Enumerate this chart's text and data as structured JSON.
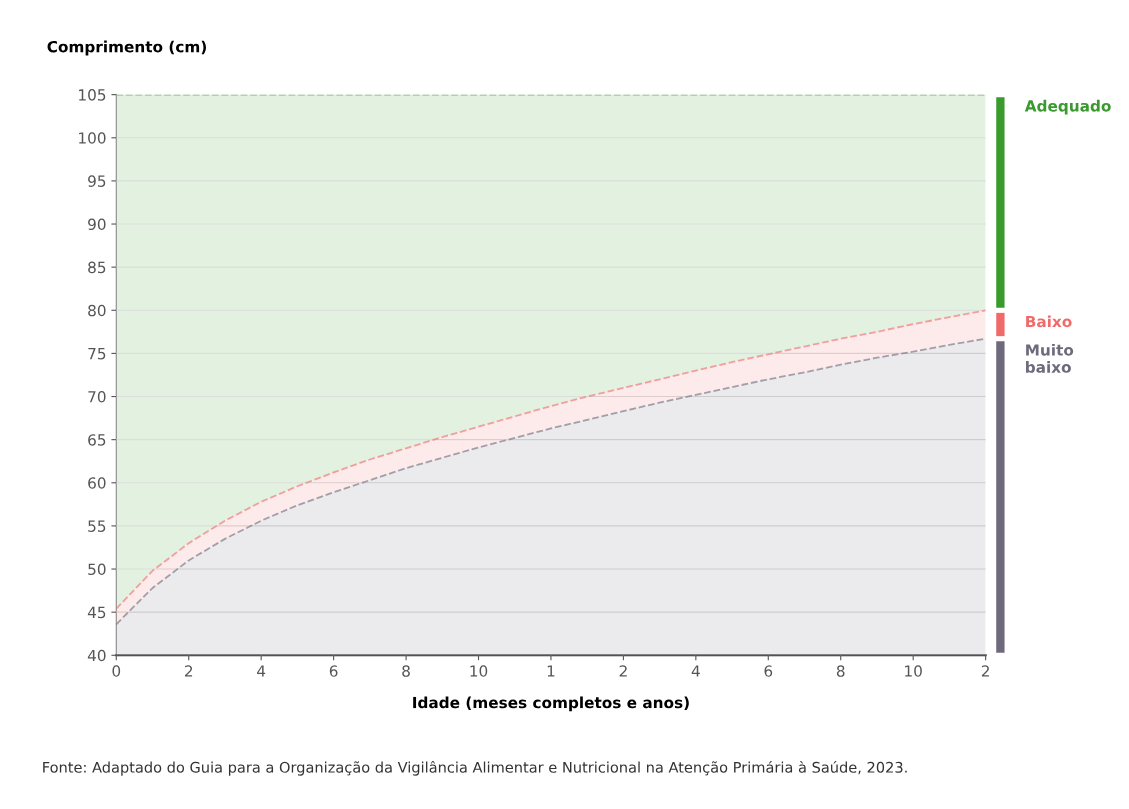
{
  "chart_data": {
    "type": "area",
    "ylabel": "Comprimento (cm)",
    "xlabel": "Idade (meses completos e anos)",
    "categories": [
      "0",
      null,
      "2",
      null,
      "4",
      null,
      "6",
      null,
      "8",
      null,
      "10",
      null,
      "1",
      null,
      "2",
      null,
      "4",
      null,
      "6",
      null,
      "8",
      null,
      "10",
      null,
      "2"
    ],
    "series": [
      {
        "name": "Adequado",
        "color": "#3a9a2e",
        "values": [
          105,
          105,
          105,
          105,
          105,
          105,
          105,
          105,
          105,
          105,
          105,
          105,
          105,
          105,
          105,
          105,
          105,
          105,
          105,
          105,
          105,
          105,
          105,
          105,
          105
        ]
      },
      {
        "name": "Baixo",
        "color": "#f06a6a",
        "values": [
          45.4,
          49.8,
          53.0,
          55.6,
          57.8,
          59.6,
          61.2,
          62.7,
          64.0,
          65.3,
          66.5,
          67.7,
          68.9,
          70.0,
          71.0,
          72.0,
          73.0,
          74.0,
          74.9,
          75.8,
          76.7,
          77.5,
          78.4,
          79.2,
          80.0
        ]
      },
      {
        "name": "Muito baixo",
        "color": "#6e6a7c",
        "values": [
          43.6,
          47.8,
          51.0,
          53.5,
          55.6,
          57.4,
          58.9,
          60.3,
          61.7,
          62.9,
          64.1,
          65.2,
          66.3,
          67.3,
          68.3,
          69.3,
          70.2,
          71.1,
          72.0,
          72.8,
          73.7,
          74.5,
          75.2,
          76.0,
          76.7
        ]
      }
    ],
    "ylim": [
      40,
      105
    ],
    "yticks": [
      40,
      45,
      50,
      55,
      60,
      65,
      70,
      75,
      80,
      85,
      90,
      95,
      100,
      105
    ],
    "grid": "y",
    "line_style": "dashed",
    "legend": "right",
    "annotations": [
      "Fonte: Adaptado do Guia para a Organização da Vigilância Alimentar e Nutricional na Atenção Primária à Saúde, 2023."
    ]
  }
}
